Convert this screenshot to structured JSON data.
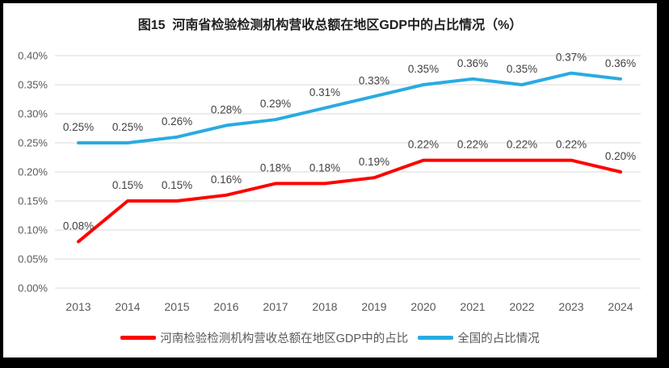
{
  "window": {
    "background": "#FFFFFF",
    "frame_border_color": "#000000"
  },
  "chart_data": {
    "type": "line",
    "title": "图15  河南省检验检测机构营收总额在地区GDP中的占比情况（%）",
    "categories": [
      "2013",
      "2014",
      "2015",
      "2016",
      "2017",
      "2018",
      "2019",
      "2020",
      "2021",
      "2022",
      "2023",
      "2024"
    ],
    "series": [
      {
        "name": "河南检验检测机构营收总额在地区GDP中的占比",
        "color": "#FF0000",
        "values_percent": [
          0.08,
          0.15,
          0.15,
          0.16,
          0.18,
          0.18,
          0.19,
          0.22,
          0.22,
          0.22,
          0.22,
          0.2
        ],
        "labels": [
          "0.08%",
          "0.15%",
          "0.15%",
          "0.16%",
          "0.18%",
          "0.18%",
          "0.19%",
          "0.22%",
          "0.22%",
          "0.22%",
          "0.22%",
          "0.20%"
        ]
      },
      {
        "name": "全国的占比情况",
        "color": "#29ABE2",
        "values_percent": [
          0.25,
          0.25,
          0.26,
          0.28,
          0.29,
          0.31,
          0.33,
          0.35,
          0.36,
          0.35,
          0.37,
          0.36
        ],
        "labels": [
          "0.25%",
          "0.25%",
          "0.26%",
          "0.28%",
          "0.29%",
          "0.31%",
          "0.33%",
          "0.35%",
          "0.36%",
          "0.35%",
          "0.37%",
          "0.36%"
        ]
      }
    ],
    "y_ticks": [
      "0.00%",
      "0.05%",
      "0.10%",
      "0.15%",
      "0.20%",
      "0.25%",
      "0.30%",
      "0.35%",
      "0.40%"
    ],
    "ylim_percent": [
      0.0,
      0.4
    ],
    "xlabel": "",
    "ylabel": "",
    "grid": "horizontal",
    "gridline_color": "#D9D9D9",
    "axis_text_color": "#595959",
    "data_label_color": "#404040",
    "legend_position": "bottom"
  }
}
